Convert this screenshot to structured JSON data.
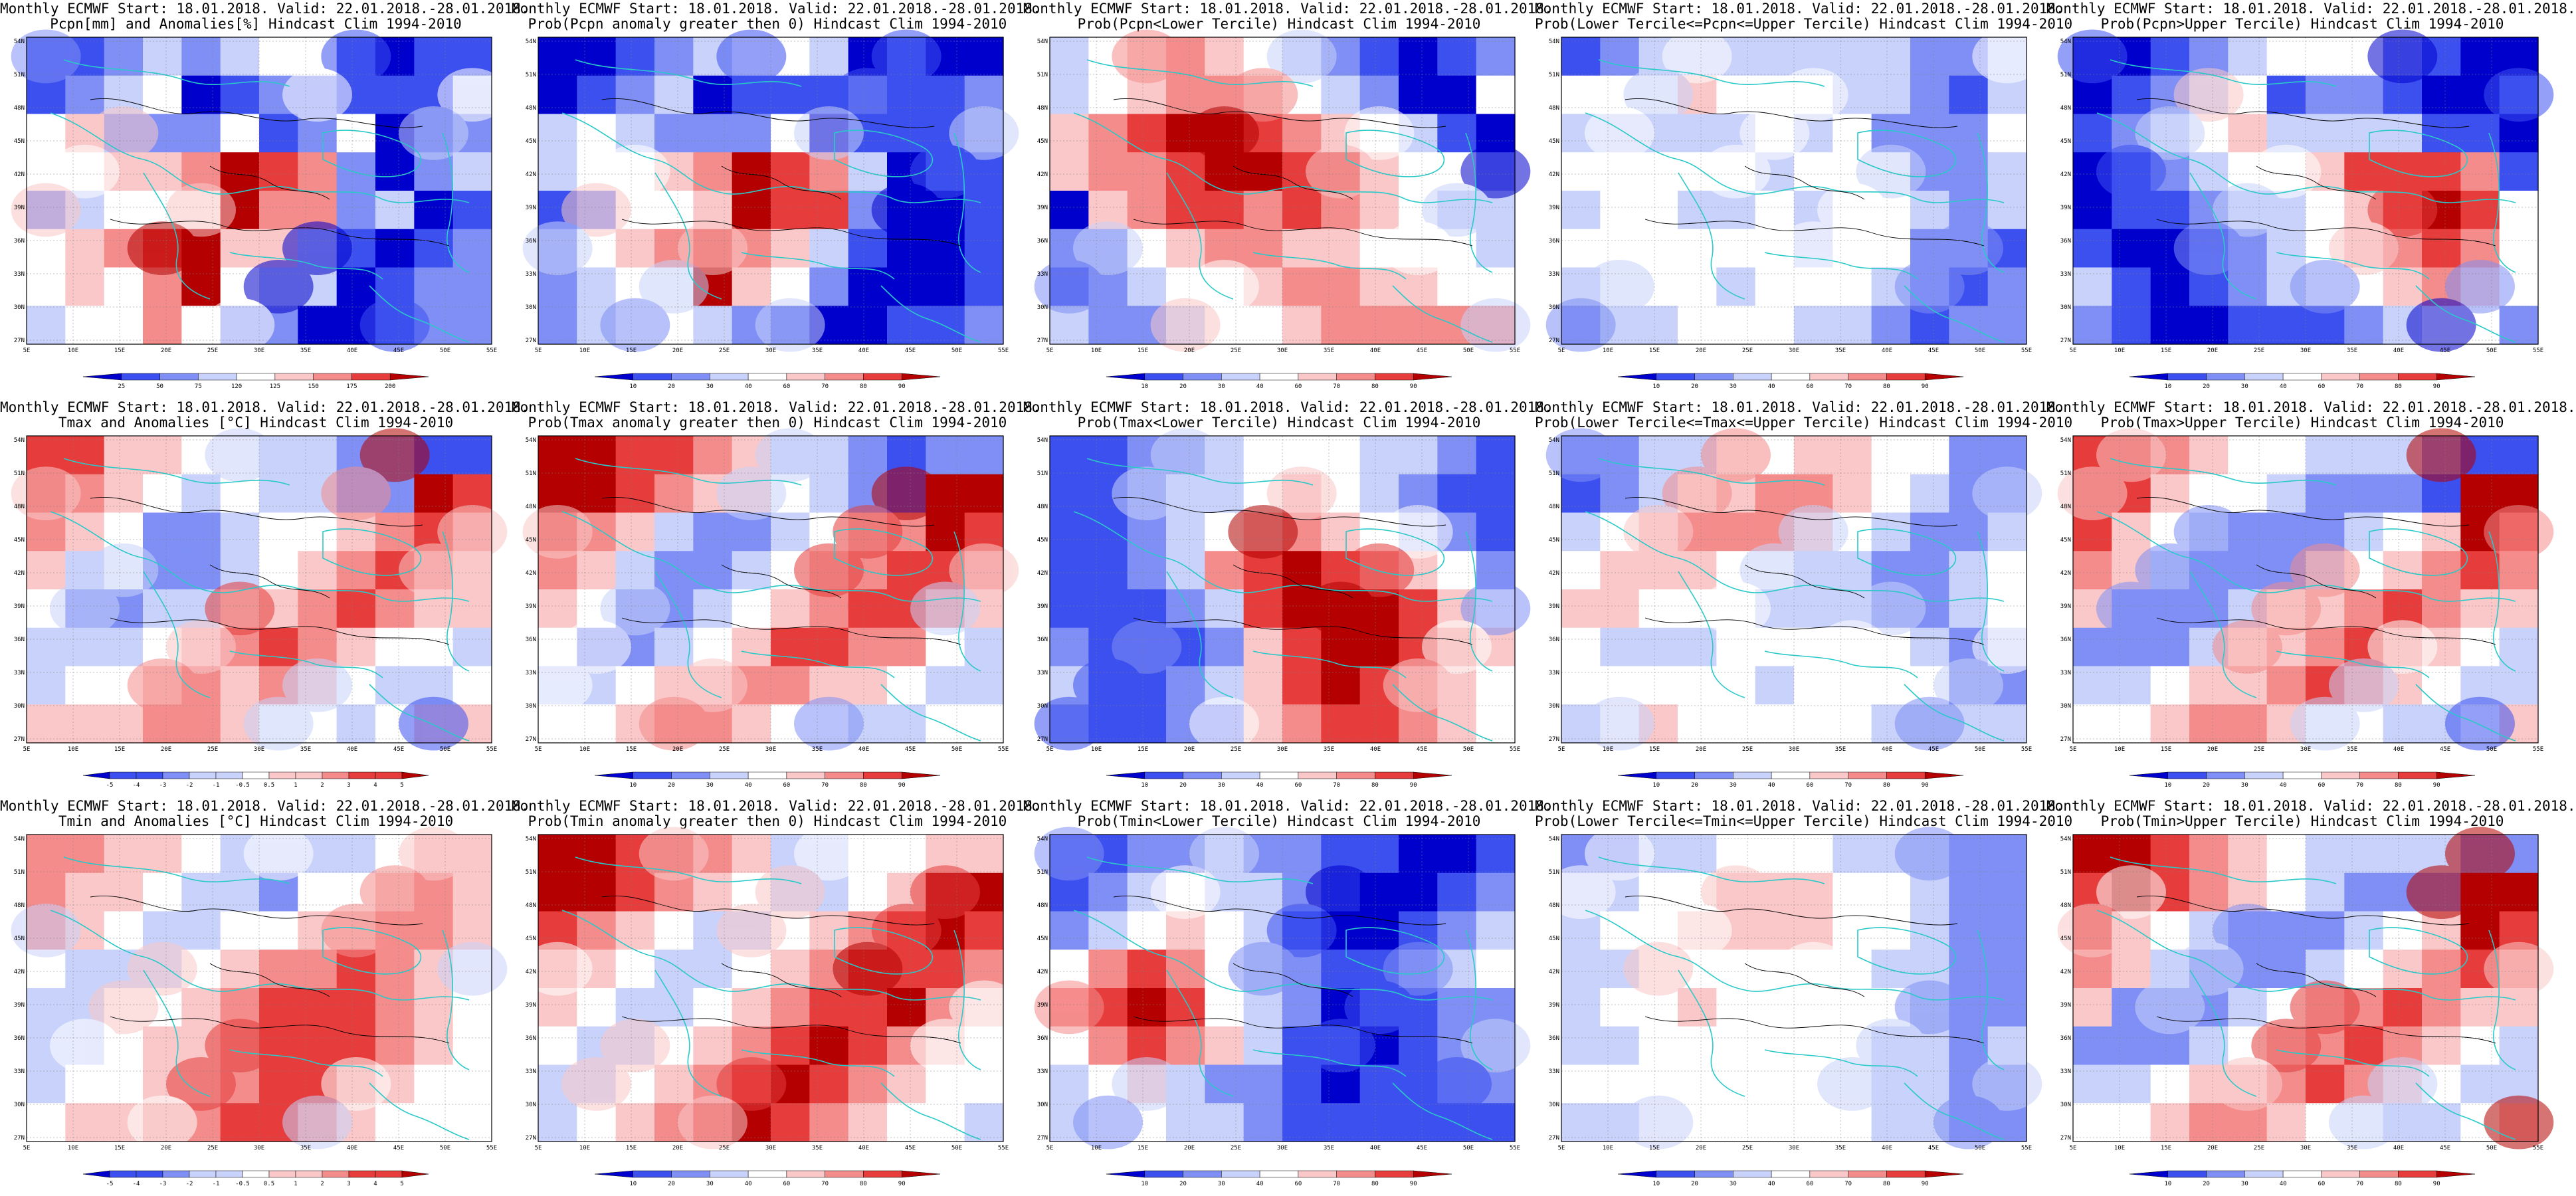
{
  "figure": {
    "common_title": "Monthly ECMWF Start: 18.01.2018. Valid: 22.01.2018.-28.01.2018.",
    "panels": [
      {
        "title": "Pcpn[mm] and Anomalies[%] Hindcast Clim 1994-2010",
        "scale": "anom_pcp"
      },
      {
        "title": "Prob(Pcpn anomaly greater then 0) Hindcast Clim 1994-2010",
        "scale": "prob"
      },
      {
        "title": "Prob(Pcpn<Lower Tercile) Hindcast Clim 1994-2010",
        "scale": "prob"
      },
      {
        "title": "Prob(Lower Tercile<=Pcpn<=Upper Tercile) Hindcast Clim 1994-2010",
        "scale": "prob"
      },
      {
        "title": "Prob(Pcpn>Upper Tercile) Hindcast Clim 1994-2010",
        "scale": "prob"
      },
      {
        "title": "Tmax and Anomalies [°C] Hindcast Clim 1994-2010",
        "scale": "anom_temp"
      },
      {
        "title": "Prob(Tmax anomaly greater then 0) Hindcast Clim 1994-2010",
        "scale": "prob"
      },
      {
        "title": "Prob(Tmax<Lower Tercile) Hindcast Clim 1994-2010",
        "scale": "prob"
      },
      {
        "title": "Prob(Lower Tercile<=Tmax<=Upper Tercile) Hindcast Clim 1994-2010",
        "scale": "prob"
      },
      {
        "title": "Prob(Tmax>Upper Tercile) Hindcast Clim 1994-2010",
        "scale": "prob"
      },
      {
        "title": "Tmin and Anomalies [°C] Hindcast Clim 1994-2010",
        "scale": "anom_temp"
      },
      {
        "title": "Prob(Tmin anomaly greater then 0) Hindcast Clim 1994-2010",
        "scale": "prob"
      },
      {
        "title": "Prob(Tmin<Lower Tercile) Hindcast Clim 1994-2010",
        "scale": "prob"
      },
      {
        "title": "Prob(Lower Tercile<=Tmin<=Upper Tercile) Hindcast Clim 1994-2010",
        "scale": "prob"
      },
      {
        "title": "Prob(Tmin>Upper Tercile) Hindcast Clim 1994-2010",
        "scale": "prob"
      }
    ],
    "lat_labels": [
      "54N",
      "51N",
      "48N",
      "45N",
      "42N",
      "39N",
      "36N",
      "33N",
      "30N",
      "27N"
    ],
    "lon_labels": [
      "5E",
      "10E",
      "15E",
      "20E",
      "25E",
      "30E",
      "35E",
      "40E",
      "45E",
      "50E",
      "55E"
    ],
    "colorbars": {
      "anom_pcp": [
        "25",
        "50",
        "75",
        "120",
        "125",
        "150",
        "175",
        "200"
      ],
      "prob": [
        "10",
        "20",
        "30",
        "40",
        "60",
        "70",
        "80",
        "90"
      ],
      "anom_temp": [
        "-5",
        "-4",
        "-3",
        "-2",
        "-1",
        "-0.5",
        "0.5",
        "1",
        "2",
        "3",
        "4",
        "5"
      ]
    },
    "colors": {
      "deep_blue": "#0000cd",
      "blue": "#3c50f0",
      "mid_blue": "#7f8ff5",
      "light_blue": "#c8d2fa",
      "white": "#ffffff",
      "light_red": "#fac8c8",
      "mid_red": "#f58c8c",
      "red": "#e63c3c",
      "deep_red": "#b40000",
      "coast": "#2ac9c9",
      "contour": "#000000"
    }
  }
}
